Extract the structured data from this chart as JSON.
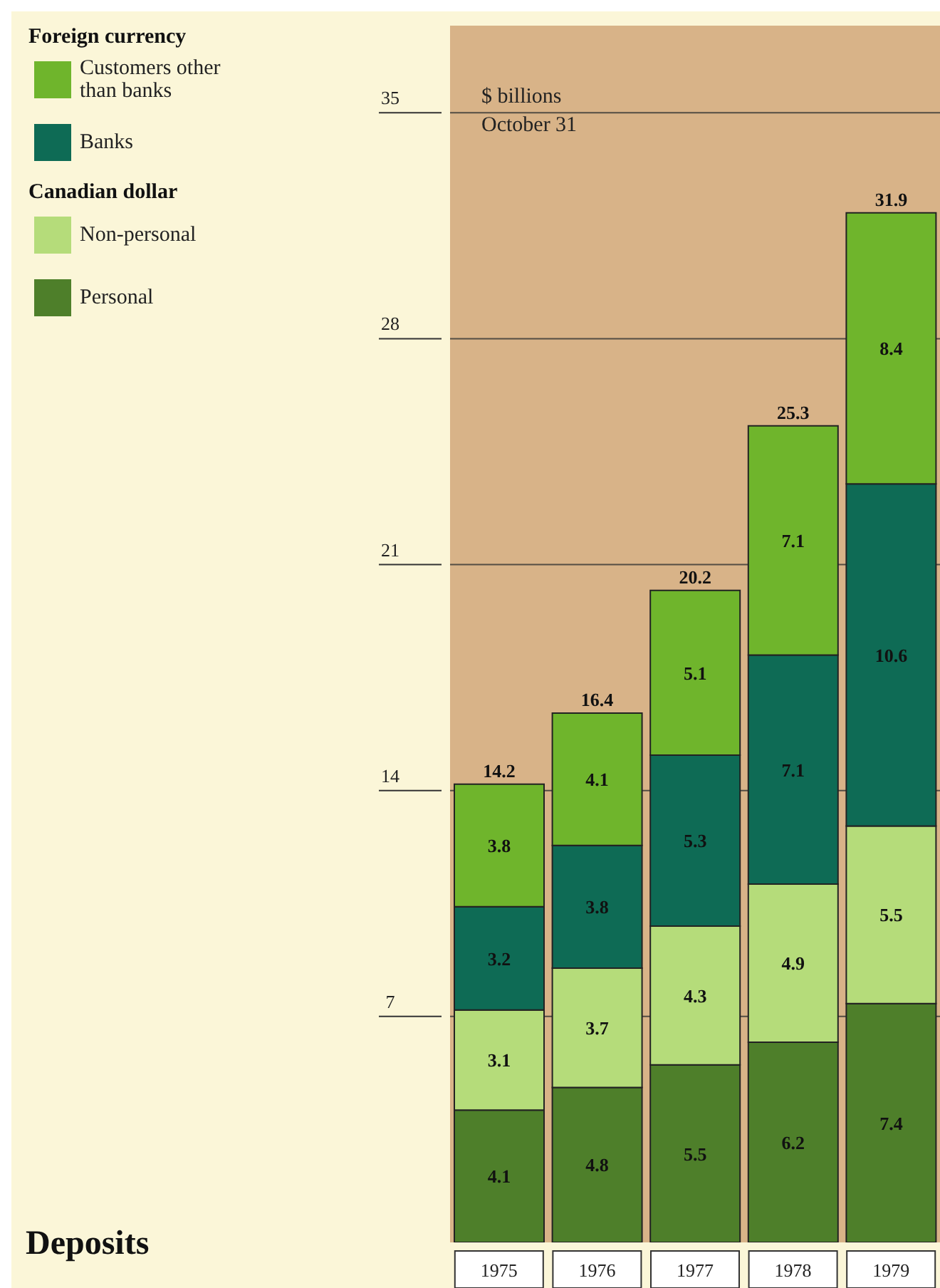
{
  "chart_data": {
    "type": "bar",
    "title": "Deposits",
    "subtitle": "October 31",
    "ylabel": "$ billions",
    "annotations": [
      "Foreign currency",
      "Canadian dollar"
    ],
    "categories": [
      "1975",
      "1976",
      "1977",
      "1978",
      "1979"
    ],
    "stacked": true,
    "series": [
      {
        "name": "Personal",
        "color": "#4e7f2a",
        "values": [
          4.1,
          4.8,
          5.5,
          6.2,
          7.4
        ]
      },
      {
        "name": "Non-personal",
        "color": "#b5dc7a",
        "values": [
          3.1,
          3.7,
          4.3,
          4.9,
          5.5
        ]
      },
      {
        "name": "Banks",
        "color": "#0e6b55",
        "values": [
          3.2,
          3.8,
          5.3,
          7.1,
          10.6
        ]
      },
      {
        "name": "Customers other than banks",
        "color": "#6fb52c",
        "values": [
          3.8,
          4.1,
          5.1,
          7.1,
          8.4
        ]
      }
    ],
    "totals": [
      "14.2",
      "16.4",
      "20.2",
      "25.3",
      "31.9"
    ],
    "data_labels": true,
    "ylim": [
      0,
      37.7
    ],
    "yticks": [
      7,
      14,
      21,
      28,
      35
    ],
    "grid": "y",
    "legend": "top left"
  }
}
